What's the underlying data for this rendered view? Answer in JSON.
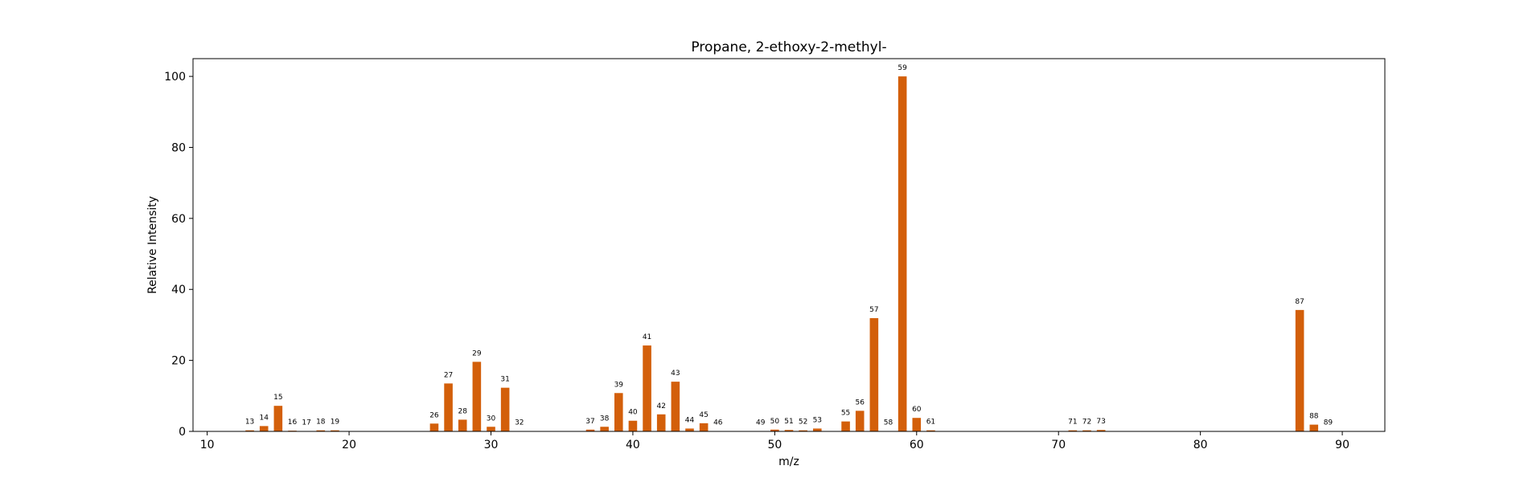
{
  "chart_data": {
    "type": "bar",
    "title": "Propane, 2-ethoxy-2-methyl-",
    "xlabel": "m/z",
    "ylabel": "Relative Intensity",
    "xlim": [
      9,
      93
    ],
    "ylim": [
      0,
      105
    ],
    "xticks": [
      10,
      20,
      30,
      40,
      50,
      60,
      70,
      80,
      90
    ],
    "yticks": [
      0,
      20,
      40,
      60,
      80,
      100
    ],
    "grid": false,
    "bar_color": "#d35f0a",
    "points": [
      {
        "x": 13,
        "y": 0.3
      },
      {
        "x": 14,
        "y": 1.5
      },
      {
        "x": 15,
        "y": 7.2
      },
      {
        "x": 16,
        "y": 0.2
      },
      {
        "x": 17,
        "y": 0.1
      },
      {
        "x": 18,
        "y": 0.3
      },
      {
        "x": 19,
        "y": 0.3
      },
      {
        "x": 26,
        "y": 2.2
      },
      {
        "x": 27,
        "y": 13.5
      },
      {
        "x": 28,
        "y": 3.3
      },
      {
        "x": 29,
        "y": 19.6
      },
      {
        "x": 30,
        "y": 1.3
      },
      {
        "x": 31,
        "y": 12.3
      },
      {
        "x": 32,
        "y": 0.1
      },
      {
        "x": 37,
        "y": 0.5
      },
      {
        "x": 38,
        "y": 1.3
      },
      {
        "x": 39,
        "y": 10.8
      },
      {
        "x": 40,
        "y": 3.0
      },
      {
        "x": 41,
        "y": 24.2
      },
      {
        "x": 42,
        "y": 4.8
      },
      {
        "x": 43,
        "y": 14.0
      },
      {
        "x": 44,
        "y": 0.8
      },
      {
        "x": 45,
        "y": 2.3
      },
      {
        "x": 46,
        "y": 0.1
      },
      {
        "x": 49,
        "y": 0.1
      },
      {
        "x": 50,
        "y": 0.5
      },
      {
        "x": 51,
        "y": 0.4
      },
      {
        "x": 52,
        "y": 0.3
      },
      {
        "x": 53,
        "y": 0.8
      },
      {
        "x": 55,
        "y": 2.8
      },
      {
        "x": 56,
        "y": 5.8
      },
      {
        "x": 57,
        "y": 31.9
      },
      {
        "x": 58,
        "y": 0.1
      },
      {
        "x": 59,
        "y": 100
      },
      {
        "x": 60,
        "y": 3.8
      },
      {
        "x": 61,
        "y": 0.3
      },
      {
        "x": 71,
        "y": 0.3
      },
      {
        "x": 72,
        "y": 0.3
      },
      {
        "x": 73,
        "y": 0.4
      },
      {
        "x": 87,
        "y": 34.2
      },
      {
        "x": 88,
        "y": 1.9
      },
      {
        "x": 89,
        "y": 0.1
      }
    ]
  }
}
